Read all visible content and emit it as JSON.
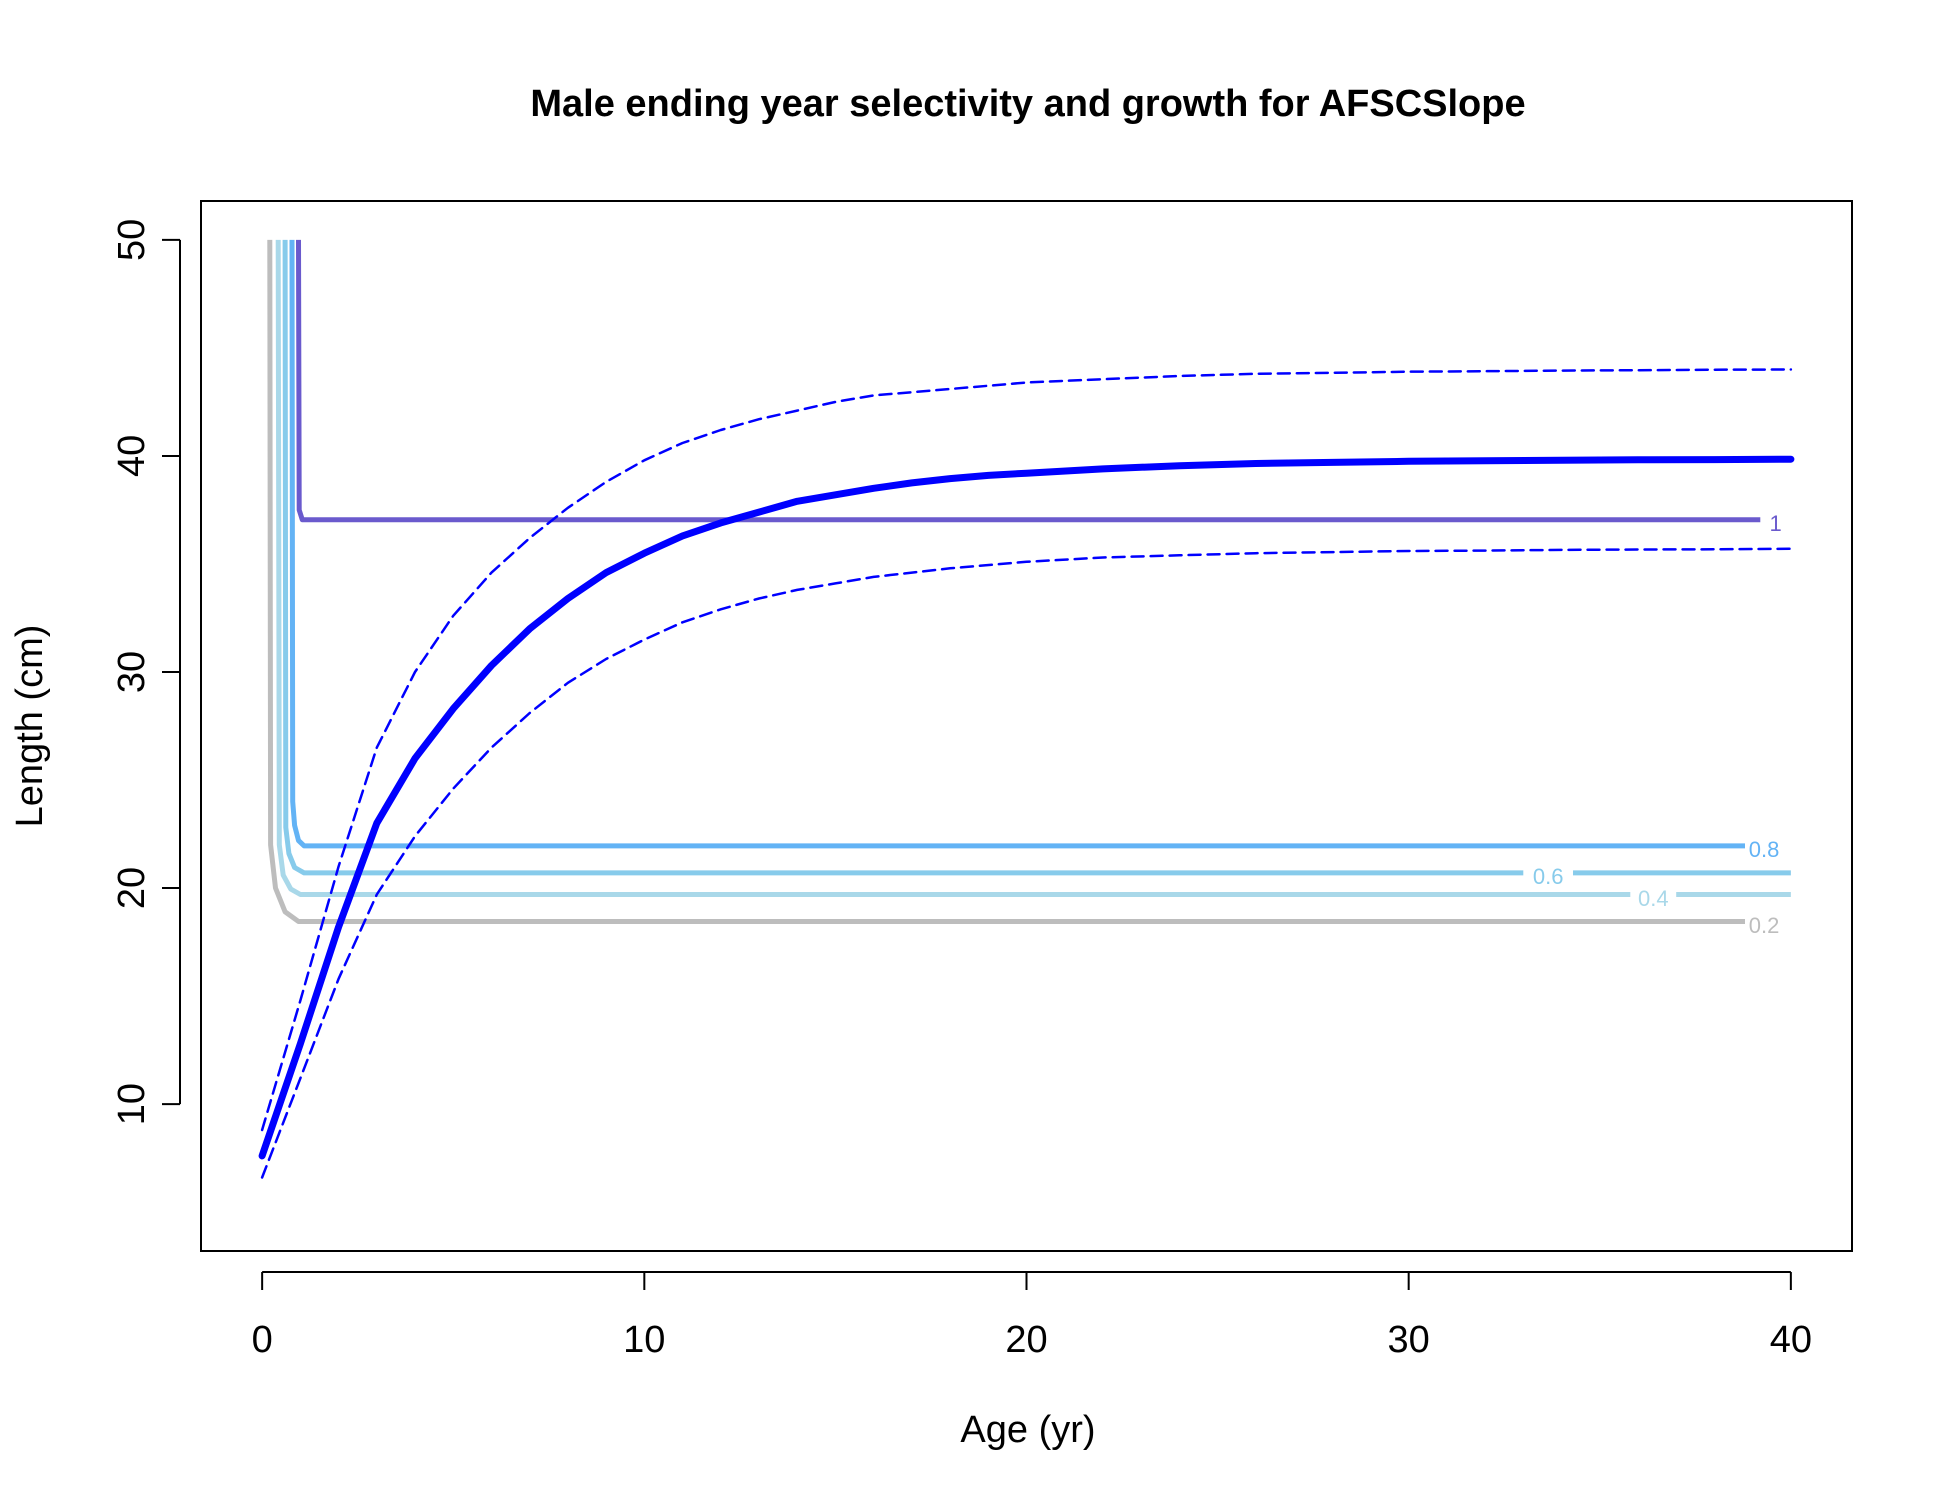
{
  "chart_data": {
    "type": "line",
    "title": "Male ending year selectivity and growth for AFSCSlope",
    "xlabel": "Age (yr)",
    "ylabel": "Length (cm)",
    "xlim": [
      -1.6,
      41.6
    ],
    "ylim": [
      3.2,
      51.8
    ],
    "x_ticks": [
      0,
      10,
      20,
      30,
      40
    ],
    "x_tick_labels": [
      "0",
      "10",
      "20",
      "30",
      "40"
    ],
    "y_ticks": [
      10,
      20,
      30,
      40,
      50
    ],
    "y_tick_labels": [
      "10",
      "20",
      "30",
      "40",
      "50"
    ],
    "grid": false,
    "colors": {
      "growth": "#0000ff",
      "contour_1": "#6a5acd",
      "contour_0_8": "#63b3f5",
      "contour_0_6": "#87cbeb",
      "contour_0_4": "#a9d8e9",
      "contour_0_2": "#bdbdbd"
    },
    "series": [
      {
        "role": "growth_mean",
        "style": "solid-thick",
        "color": "#0000ff",
        "x": [
          0,
          1,
          2,
          3,
          4,
          5,
          6,
          7,
          8,
          9,
          10,
          11,
          12,
          13,
          14,
          15,
          16,
          17,
          18,
          19,
          20,
          22,
          24,
          26,
          28,
          30,
          32,
          34,
          36,
          38,
          40
        ],
        "y": [
          7.6,
          12.8,
          18.2,
          23.0,
          26.0,
          28.3,
          30.3,
          32.0,
          33.4,
          34.6,
          35.5,
          36.3,
          36.9,
          37.4,
          37.9,
          38.2,
          38.5,
          38.75,
          38.95,
          39.1,
          39.2,
          39.4,
          39.55,
          39.65,
          39.7,
          39.75,
          39.78,
          39.8,
          39.82,
          39.83,
          39.85
        ]
      },
      {
        "role": "growth_upper",
        "style": "dashed",
        "color": "#0000ff",
        "x": [
          0,
          1,
          2,
          3,
          4,
          5,
          6,
          7,
          8,
          9,
          10,
          11,
          12,
          13,
          14,
          15,
          16,
          18,
          20,
          22,
          24,
          26,
          28,
          30,
          32,
          34,
          36,
          38,
          40
        ],
        "y": [
          8.8,
          14.8,
          21.0,
          26.5,
          30.0,
          32.6,
          34.6,
          36.2,
          37.6,
          38.8,
          39.8,
          40.6,
          41.2,
          41.7,
          42.1,
          42.5,
          42.8,
          43.1,
          43.4,
          43.55,
          43.7,
          43.8,
          43.85,
          43.9,
          43.92,
          43.95,
          43.97,
          43.99,
          44.0
        ]
      },
      {
        "role": "growth_lower",
        "style": "dashed",
        "color": "#0000ff",
        "x": [
          0,
          1,
          2,
          3,
          4,
          5,
          6,
          7,
          8,
          9,
          10,
          11,
          12,
          13,
          14,
          15,
          16,
          18,
          20,
          22,
          24,
          26,
          28,
          30,
          32,
          34,
          36,
          38,
          40
        ],
        "y": [
          6.6,
          11.2,
          15.8,
          19.7,
          22.4,
          24.6,
          26.5,
          28.1,
          29.5,
          30.6,
          31.5,
          32.3,
          32.9,
          33.4,
          33.8,
          34.1,
          34.4,
          34.8,
          35.1,
          35.3,
          35.4,
          35.5,
          35.55,
          35.6,
          35.62,
          35.65,
          35.67,
          35.68,
          35.7
        ]
      }
    ],
    "contours": [
      {
        "level": "1",
        "label": "1",
        "color": "#6a5acd",
        "x": [
          0.95,
          0.97,
          1.05,
          39.2
        ],
        "y": [
          50,
          37.5,
          37.05,
          37.05
        ],
        "label_x": 39.6,
        "label_y": 36.9
      },
      {
        "level": "0.8",
        "label": "0.8",
        "color": "#63b3f5",
        "x": [
          0.78,
          0.8,
          0.85,
          0.95,
          1.1,
          38.8
        ],
        "y": [
          50,
          24.0,
          22.9,
          22.2,
          21.95,
          21.95
        ],
        "label_x": 39.3,
        "label_y": 21.8
      },
      {
        "level": "0.6",
        "label": "0.6",
        "color": "#87cbeb",
        "x": [
          0.6,
          0.62,
          0.7,
          0.85,
          1.1,
          33.0
        ],
        "y": [
          50,
          22.8,
          21.6,
          20.95,
          20.7,
          20.7
        ],
        "gap_end_x": 34.3,
        "tail_x": 40,
        "label_x": 33.65,
        "label_y": 20.55
      },
      {
        "level": "0.4",
        "label": "0.4",
        "color": "#a9d8e9",
        "x": [
          0.42,
          0.45,
          0.55,
          0.75,
          1.0,
          35.8
        ],
        "y": [
          50,
          22.0,
          20.6,
          19.95,
          19.7,
          19.7
        ],
        "gap_end_x": 37.0,
        "tail_x": 40,
        "label_x": 36.4,
        "label_y": 19.55
      },
      {
        "level": "0.2",
        "label": "0.2",
        "color": "#bdbdbd",
        "x": [
          0.2,
          0.22,
          0.35,
          0.6,
          0.95,
          38.8
        ],
        "y": [
          50,
          22.0,
          20.0,
          18.9,
          18.45,
          18.45
        ],
        "label_x": 39.3,
        "label_y": 18.3
      }
    ]
  }
}
